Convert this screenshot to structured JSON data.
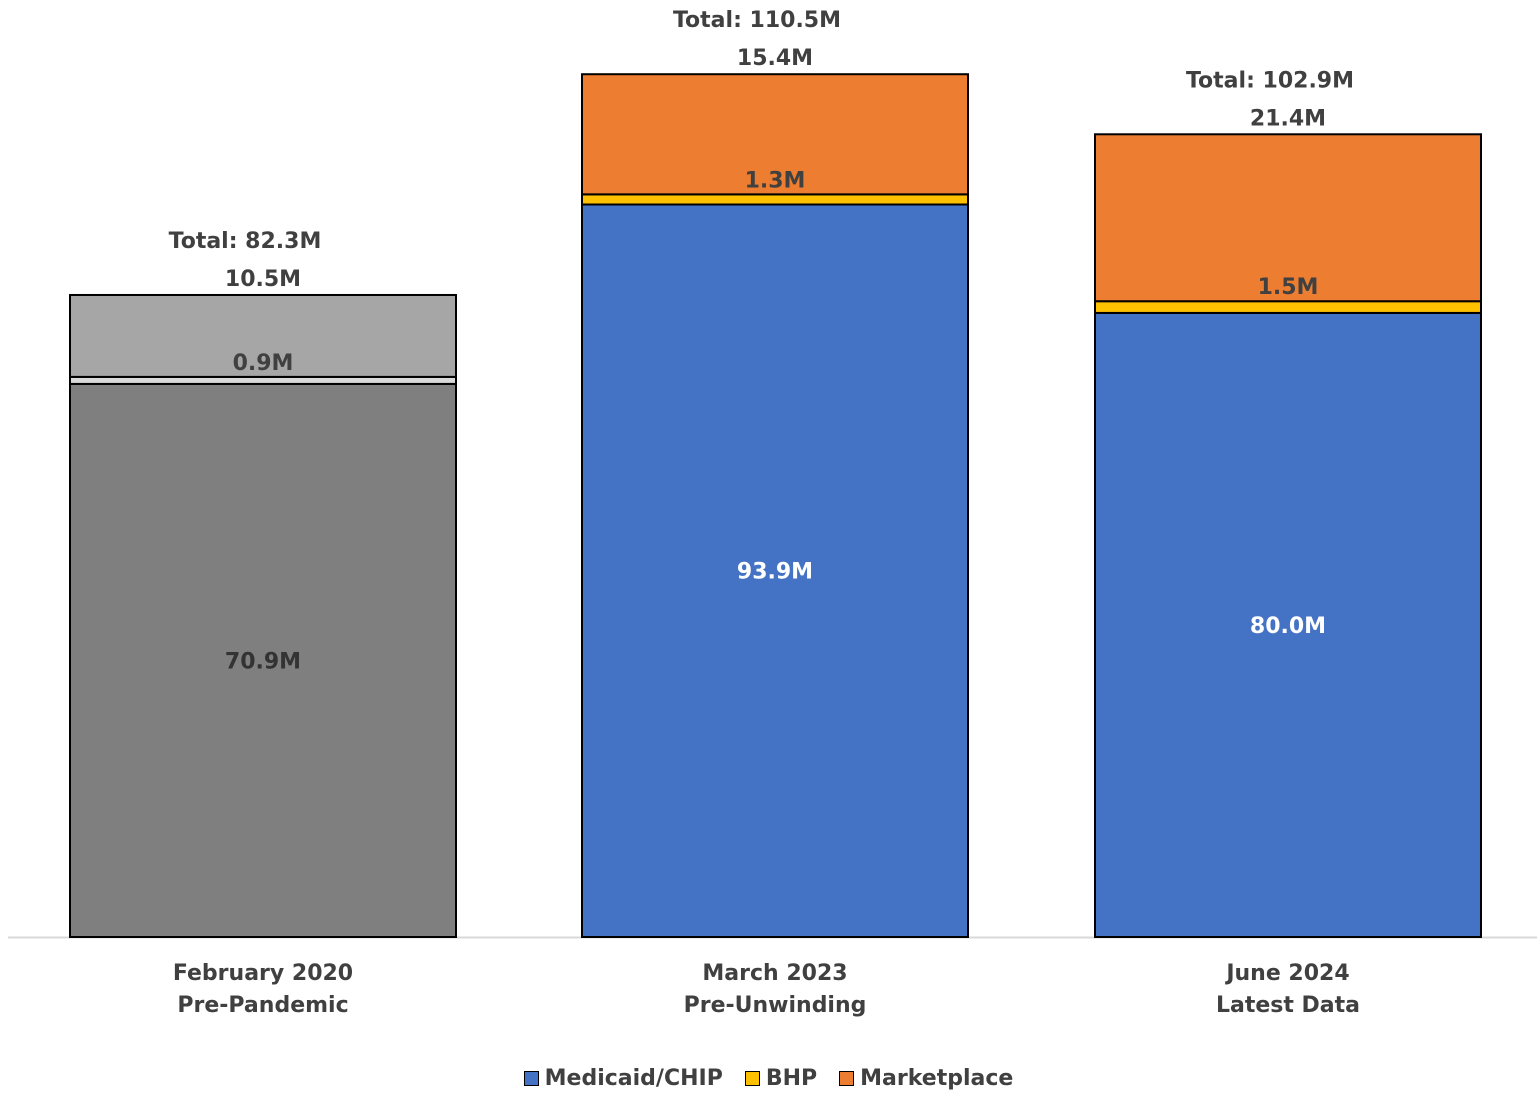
{
  "chart_data": {
    "type": "bar",
    "stacked": true,
    "categories": [
      {
        "line1": "February 2020",
        "line2": "Pre-Pandemic"
      },
      {
        "line1": "March 2023",
        "line2": "Pre-Unwinding"
      },
      {
        "line1": "June 2024",
        "line2": "Latest Data"
      }
    ],
    "series": [
      {
        "name": "Medicaid/CHIP",
        "color": "#4472C4",
        "values": [
          70.9,
          93.9,
          80.0
        ],
        "labels": [
          "70.9M",
          "93.9M",
          "80.0M"
        ]
      },
      {
        "name": "BHP",
        "color": "#FFC000",
        "values": [
          0.9,
          1.3,
          1.5
        ],
        "labels": [
          "0.9M",
          "1.3M",
          "1.5M"
        ]
      },
      {
        "name": "Marketplace",
        "color": "#ED7D31",
        "values": [
          10.5,
          15.4,
          21.4
        ],
        "labels": [
          "10.5M",
          "15.4M",
          "21.4M"
        ]
      }
    ],
    "first_category_colors": [
      "#7F7F7F",
      "#D9D9D9",
      "#A6A6A6"
    ],
    "totals": [
      "Total: 82.3M",
      "Total: 110.5M",
      "Total: 102.9M"
    ],
    "ylim": [
      0,
      110.5
    ],
    "grid": false,
    "legend_position": "bottom"
  }
}
